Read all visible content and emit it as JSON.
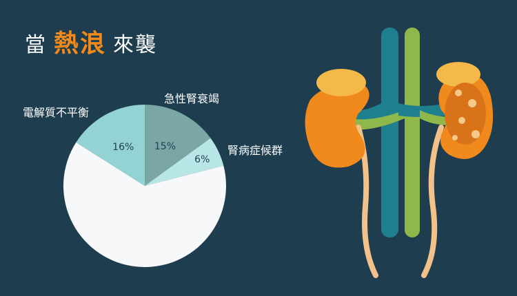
{
  "title": {
    "part1": "當",
    "part2": "熱浪",
    "part3": "來襲"
  },
  "colors": {
    "background": "#1e3d4f",
    "accent": "#f08a1c",
    "slice_heatstroke": "#7aa6a6",
    "slice_nephrotic": "#b8e6e6",
    "slice_electrolyte": "#93d3d3",
    "slice_other": "#f7f8fa"
  },
  "chart_data": {
    "type": "pie",
    "slices": [
      {
        "label": "急性腎衰竭",
        "value": 15,
        "value_label": "15%",
        "color": "#7aa6a6"
      },
      {
        "label": "腎病症候群",
        "value": 6,
        "value_label": "6%",
        "color": "#b8e6e6"
      },
      {
        "label": "",
        "value": 63,
        "value_label": "",
        "color": "#f7f8fa"
      },
      {
        "label": "電解質不平衡",
        "value": 16,
        "value_label": "16%",
        "color": "#93d3d3"
      }
    ]
  }
}
